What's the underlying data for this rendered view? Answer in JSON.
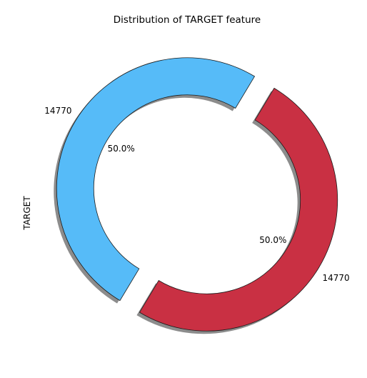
{
  "chart_data": {
    "type": "pie",
    "title": "Distribution of TARGET feature",
    "ylabel": "TARGET",
    "start_angle_deg": -59,
    "donut": true,
    "exploded": true,
    "shadow": true,
    "slices": [
      {
        "value": 14770,
        "label": "14770",
        "pct_label": "50.0%",
        "color": "#c93043"
      },
      {
        "value": 14770,
        "label": "14770",
        "pct_label": "50.0%",
        "color": "#56bbf8"
      }
    ]
  }
}
